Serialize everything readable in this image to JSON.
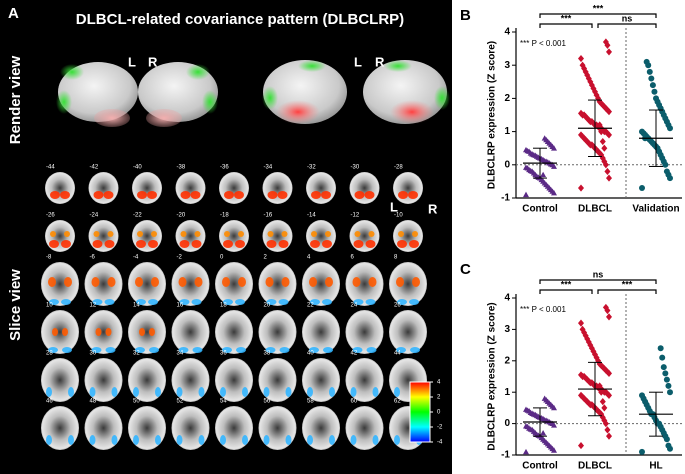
{
  "panel_a": {
    "letter": "A",
    "title": "DLBCL-related covariance pattern (DLBCLRP)",
    "render_label": "Render view",
    "slice_label": "Slice view",
    "render_lr": [
      [
        "L",
        "R"
      ],
      [
        "L",
        "R"
      ]
    ],
    "slice_lr": [
      "L",
      "R"
    ],
    "slices": [
      [
        -44,
        -42,
        -40,
        -38,
        -36,
        -34,
        -32,
        -30,
        -28
      ],
      [
        -26,
        -24,
        -22,
        -20,
        -18,
        -16,
        -14,
        -12,
        -10
      ],
      [
        -8,
        -6,
        -4,
        -2,
        0,
        2,
        4,
        6,
        8
      ],
      [
        10,
        12,
        14,
        16,
        18,
        20,
        22,
        24,
        26
      ],
      [
        28,
        30,
        32,
        34,
        36,
        38,
        40,
        42,
        44
      ],
      [
        46,
        48,
        50,
        52,
        54,
        56,
        58,
        60,
        62
      ]
    ],
    "colorbar": {
      "lim": [
        -4,
        4
      ],
      "ticks": [
        4,
        2,
        0,
        -2,
        -4
      ]
    }
  },
  "chart_data": [
    {
      "type": "strip",
      "panel": "B",
      "ylabel": "DLBCLRP expression (Z score)",
      "ylim": [
        -1,
        4
      ],
      "yticks": [
        -1,
        0,
        1,
        2,
        3,
        4
      ],
      "categories": [
        "Control",
        "DLBCL",
        "Validation"
      ],
      "series": [
        {
          "color": "#5b2a86",
          "marker": "triangle",
          "mean": 0.05,
          "sd": 0.45,
          "values": [
            -0.9,
            -0.85,
            -0.8,
            -0.75,
            -0.7,
            -0.65,
            -0.6,
            -0.55,
            -0.5,
            -0.45,
            -0.4,
            -0.38,
            -0.35,
            -0.3,
            -0.25,
            -0.2,
            -0.18,
            -0.15,
            -0.1,
            -0.08,
            -0.05,
            0,
            0.02,
            0.05,
            0.08,
            0.1,
            0.12,
            0.15,
            0.18,
            0.2,
            0.22,
            0.25,
            0.28,
            0.3,
            0.32,
            0.35,
            0.4,
            0.42,
            0.45,
            0.5,
            0.55,
            0.6,
            0.65,
            0.7,
            0.75,
            0.8,
            -0.3
          ]
        },
        {
          "color": "#c8102e",
          "marker": "diamond",
          "mean": 1.1,
          "sd": 0.85,
          "values": [
            -0.7,
            -0.4,
            -0.2,
            0,
            0.1,
            0.2,
            0.3,
            0.35,
            0.4,
            0.45,
            0.5,
            0.55,
            0.6,
            0.6,
            0.65,
            0.7,
            0.75,
            0.8,
            0.85,
            0.9,
            0.9,
            0.95,
            1.0,
            1.0,
            1.05,
            1.1,
            1.1,
            1.15,
            1.2,
            1.2,
            1.25,
            1.3,
            1.3,
            1.35,
            1.4,
            1.45,
            1.5,
            1.5,
            1.55,
            1.6,
            1.65,
            1.7,
            1.75,
            1.8,
            1.85,
            1.9,
            2.0,
            2.1,
            2.2,
            2.3,
            2.4,
            2.5,
            2.6,
            2.7,
            2.8,
            2.9,
            3.0,
            3.2,
            3.4,
            3.6,
            3.7,
            0.5,
            0.7,
            1.0,
            1.2
          ]
        },
        {
          "color": "#0b5d6b",
          "marker": "circle",
          "mean": 0.8,
          "sd": 0.85,
          "values": [
            -0.7,
            -0.4,
            -0.3,
            -0.2,
            0,
            0.1,
            0.2,
            0.3,
            0.4,
            0.5,
            0.55,
            0.6,
            0.65,
            0.7,
            0.75,
            0.8,
            0.85,
            0.9,
            0.95,
            1.0,
            1.1,
            1.2,
            1.3,
            1.4,
            1.5,
            1.6,
            1.7,
            1.8,
            1.9,
            2.0,
            2.2,
            2.4,
            2.6,
            2.8,
            3.0,
            3.1,
            0.8
          ]
        }
      ],
      "brackets": [
        {
          "groups": [
            "Control",
            "Validation"
          ],
          "label": "***"
        },
        {
          "groups": [
            "Control",
            "DLBCL"
          ],
          "label": "***"
        },
        {
          "groups": [
            "DLBCL",
            "Validation"
          ],
          "label": "ns"
        }
      ],
      "annotation": "*** P < 0.001"
    },
    {
      "type": "strip",
      "panel": "C",
      "ylabel": "DLBCLRP expression (Z score)",
      "ylim": [
        -1,
        4
      ],
      "yticks": [
        -1,
        0,
        1,
        2,
        3,
        4
      ],
      "categories": [
        "Control",
        "DLBCL",
        "HL"
      ],
      "series": [
        {
          "color": "#5b2a86",
          "marker": "triangle",
          "mean": 0.05,
          "sd": 0.45,
          "values": [
            -0.9,
            -0.85,
            -0.8,
            -0.75,
            -0.7,
            -0.65,
            -0.6,
            -0.55,
            -0.5,
            -0.45,
            -0.4,
            -0.38,
            -0.35,
            -0.3,
            -0.25,
            -0.2,
            -0.18,
            -0.15,
            -0.1,
            -0.08,
            -0.05,
            0,
            0.02,
            0.05,
            0.08,
            0.1,
            0.12,
            0.15,
            0.18,
            0.2,
            0.22,
            0.25,
            0.28,
            0.3,
            0.32,
            0.35,
            0.4,
            0.42,
            0.45,
            0.5,
            0.55,
            0.6,
            0.65,
            0.7,
            0.75,
            0.8,
            -0.3
          ]
        },
        {
          "color": "#c8102e",
          "marker": "diamond",
          "mean": 1.1,
          "sd": 0.85,
          "values": [
            -0.7,
            -0.4,
            -0.2,
            0,
            0.1,
            0.2,
            0.3,
            0.35,
            0.4,
            0.45,
            0.5,
            0.55,
            0.6,
            0.6,
            0.65,
            0.7,
            0.75,
            0.8,
            0.85,
            0.9,
            0.9,
            0.95,
            1.0,
            1.0,
            1.05,
            1.1,
            1.1,
            1.15,
            1.2,
            1.2,
            1.25,
            1.3,
            1.3,
            1.35,
            1.4,
            1.45,
            1.5,
            1.5,
            1.55,
            1.6,
            1.65,
            1.7,
            1.75,
            1.8,
            1.85,
            1.9,
            2.0,
            2.1,
            2.2,
            2.3,
            2.4,
            2.5,
            2.6,
            2.7,
            2.8,
            2.9,
            3.0,
            3.2,
            3.4,
            3.6,
            3.7,
            0.5,
            0.7,
            1.0,
            1.2
          ]
        },
        {
          "color": "#0b5d6b",
          "marker": "circle",
          "mean": 0.3,
          "sd": 0.7,
          "values": [
            -0.9,
            -0.8,
            -0.7,
            -0.5,
            -0.4,
            -0.3,
            -0.2,
            -0.1,
            0,
            0,
            0.1,
            0.2,
            0.3,
            0.3,
            0.4,
            0.5,
            0.6,
            0.7,
            0.8,
            0.9,
            1.0,
            1.2,
            1.4,
            1.6,
            1.8,
            2.1,
            2.4
          ]
        }
      ],
      "brackets": [
        {
          "groups": [
            "Control",
            "HL"
          ],
          "label": "ns"
        },
        {
          "groups": [
            "Control",
            "DLBCL"
          ],
          "label": "***"
        },
        {
          "groups": [
            "DLBCL",
            "HL"
          ],
          "label": "***"
        }
      ],
      "annotation": "*** P < 0.001"
    }
  ]
}
